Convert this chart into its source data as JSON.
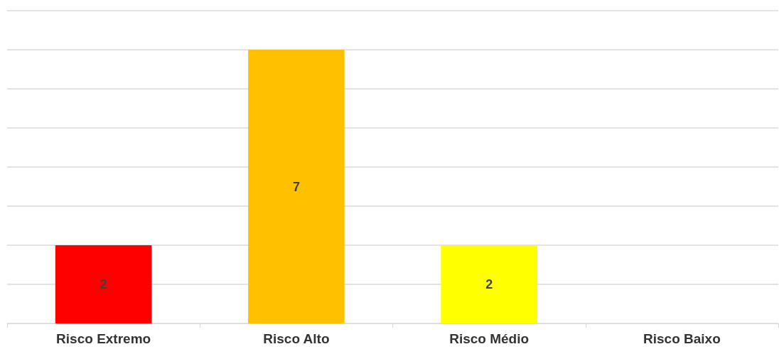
{
  "chart_data": {
    "type": "bar",
    "categories": [
      "Risco Extremo",
      "Risco Alto",
      "Risco Médio",
      "Risco Baixo"
    ],
    "values": [
      2,
      7,
      2,
      0
    ],
    "colors": [
      "#ff0000",
      "#ffc000",
      "#ffff00",
      "#00b050"
    ],
    "value_labels": [
      "2",
      "7",
      "2",
      null
    ],
    "ylim": [
      0,
      8
    ],
    "yticks": [
      {
        "value": 0,
        "label": null
      },
      {
        "value": 1,
        "label": null
      },
      {
        "value": 2,
        "label": null
      },
      {
        "value": 3,
        "label": null
      },
      {
        "value": 4,
        "label": null
      },
      {
        "value": 5,
        "label": null
      },
      {
        "value": 6,
        "label": null
      },
      {
        "value": 7,
        "label": null
      },
      {
        "value": 8,
        "label": null
      }
    ],
    "grid": "y",
    "tick_labels": "x"
  }
}
